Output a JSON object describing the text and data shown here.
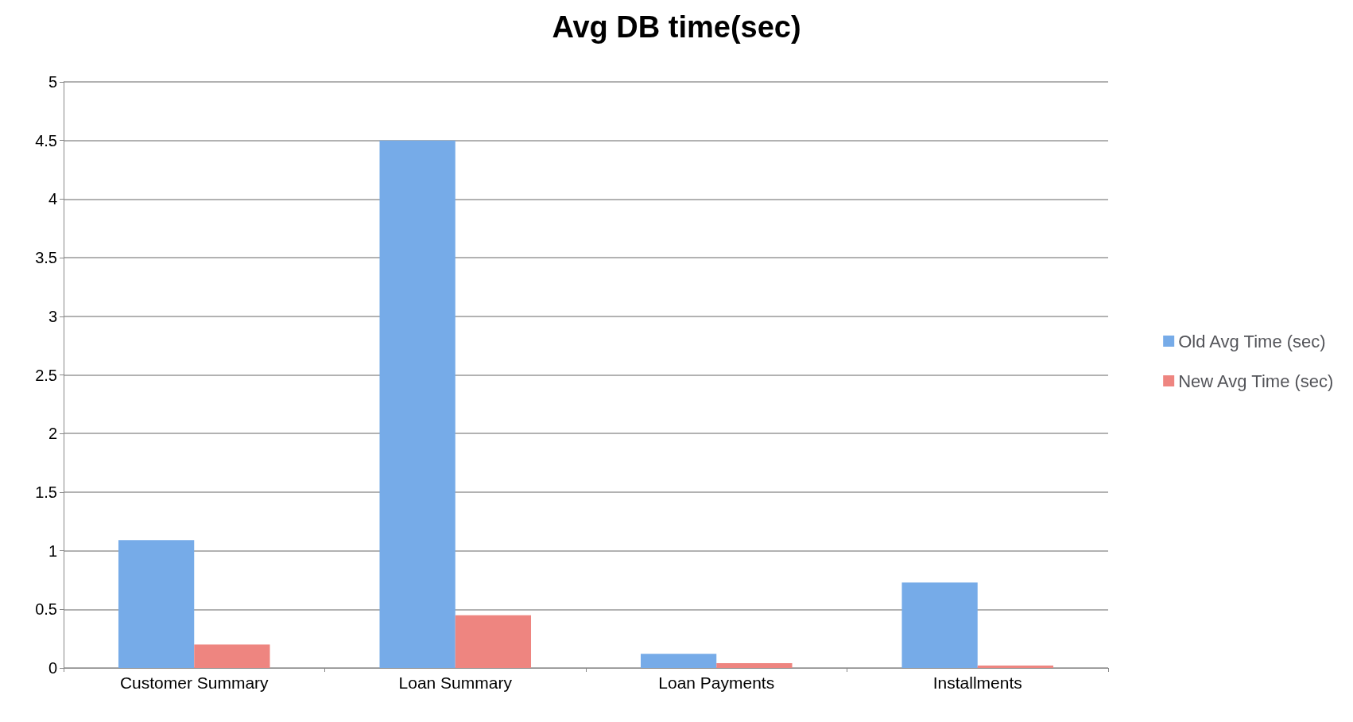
{
  "chart_data": {
    "type": "bar",
    "title": "Avg DB time(sec)",
    "categories": [
      "Customer Summary",
      "Loan Summary",
      "Loan Payments",
      "Installments"
    ],
    "series": [
      {
        "name": "Old Avg Time (sec)",
        "color": "#76abe8",
        "values": [
          1.09,
          4.5,
          0.12,
          0.73
        ]
      },
      {
        "name": "New Avg Time (sec)",
        "color": "#ee8580",
        "values": [
          0.2,
          0.45,
          0.04,
          0.02
        ]
      }
    ],
    "ylim": [
      0,
      5
    ],
    "yticks": [
      0,
      0.5,
      1,
      1.5,
      2,
      2.5,
      3,
      3.5,
      4,
      4.5,
      5
    ],
    "grid": "y",
    "legend": "right"
  }
}
